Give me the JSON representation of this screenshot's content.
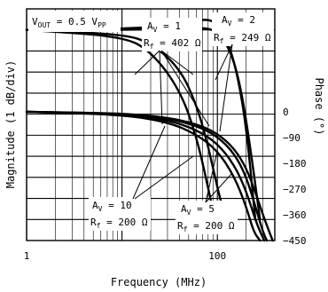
{
  "chart_data": {
    "type": "line",
    "x_scale": "log",
    "xlabel": "Frequency (MHz)",
    "ylabel": "Magnitude (1 dB/div)",
    "y2label": "Phase (°)",
    "xlim": [
      1,
      400
    ],
    "x_ticks": [
      {
        "value": 1,
        "label": "1"
      },
      {
        "value": 100,
        "label": "100"
      }
    ],
    "ylim": [
      -10,
      1
    ],
    "y2lim": [
      -450,
      0
    ],
    "y2_ticks": [
      {
        "value": 0,
        "label": "0"
      },
      {
        "value": -90,
        "label": "−90"
      },
      {
        "value": -180,
        "label": "−180"
      },
      {
        "value": -270,
        "label": "−270"
      },
      {
        "value": -360,
        "label": "−360"
      },
      {
        "value": -450,
        "label": "−450"
      }
    ],
    "grid": true,
    "condition": {
      "prefix": "V",
      "sub": "OUT",
      "value": " = 0.5 V",
      "unit_sub": "PP"
    },
    "annotations": [
      {
        "id": "a1",
        "gain": "1",
        "rf": "402"
      },
      {
        "id": "a2",
        "gain": "2",
        "rf": "249"
      },
      {
        "id": "a10",
        "gain": "10",
        "rf": "200"
      },
      {
        "id": "a5",
        "gain": "5",
        "rf": "200"
      }
    ],
    "magnitude_series": [
      {
        "gain": "1",
        "rf": "402",
        "x": [
          1,
          10,
          30,
          60,
          80,
          100,
          130,
          160,
          200,
          250
        ],
        "y": [
          0,
          0.05,
          0.2,
          0.45,
          0.5,
          0.3,
          -0.6,
          -2,
          -4.5,
          -9
        ]
      },
      {
        "gain": "2",
        "rf": "249",
        "x": [
          1,
          10,
          30,
          60,
          90,
          120,
          150,
          180,
          220,
          280
        ],
        "y": [
          0,
          0,
          0.05,
          0.1,
          0.05,
          -0.5,
          -1.5,
          -3,
          -5.5,
          -9
        ]
      },
      {
        "gain": "5",
        "rf": "200",
        "x": [
          1,
          10,
          20,
          40,
          60,
          80,
          100,
          130
        ],
        "y": [
          0,
          -0.2,
          -0.6,
          -1.8,
          -3.5,
          -5.5,
          -7.5,
          -9.5
        ]
      },
      {
        "gain": "10",
        "rf": "200",
        "x": [
          1,
          10,
          20,
          40,
          60,
          80,
          100
        ],
        "y": [
          0,
          -0.3,
          -1,
          -2.8,
          -5,
          -7.5,
          -9.5
        ]
      }
    ],
    "phase_series": [
      {
        "gain": "1",
        "rf": "402",
        "x": [
          1,
          10,
          30,
          60,
          100,
          150,
          200,
          250,
          300,
          330
        ],
        "y": [
          0,
          -6,
          -22,
          -48,
          -85,
          -145,
          -225,
          -330,
          -420,
          -450
        ]
      },
      {
        "gain": "2",
        "rf": "249",
        "x": [
          1,
          10,
          30,
          60,
          100,
          150,
          200,
          250,
          300,
          350,
          380
        ],
        "y": [
          0,
          -5,
          -20,
          -42,
          -75,
          -128,
          -195,
          -280,
          -360,
          -420,
          -450
        ]
      },
      {
        "gain": "5",
        "rf": "200",
        "x": [
          1,
          10,
          30,
          60,
          100,
          150,
          200,
          260,
          310
        ],
        "y": [
          0,
          -8,
          -28,
          -62,
          -110,
          -185,
          -275,
          -395,
          -450
        ]
      },
      {
        "gain": "10",
        "rf": "200",
        "x": [
          1,
          10,
          30,
          60,
          100,
          150,
          200,
          240,
          280
        ],
        "y": [
          0,
          -10,
          -35,
          -78,
          -135,
          -225,
          -330,
          -420,
          -450
        ]
      }
    ]
  }
}
